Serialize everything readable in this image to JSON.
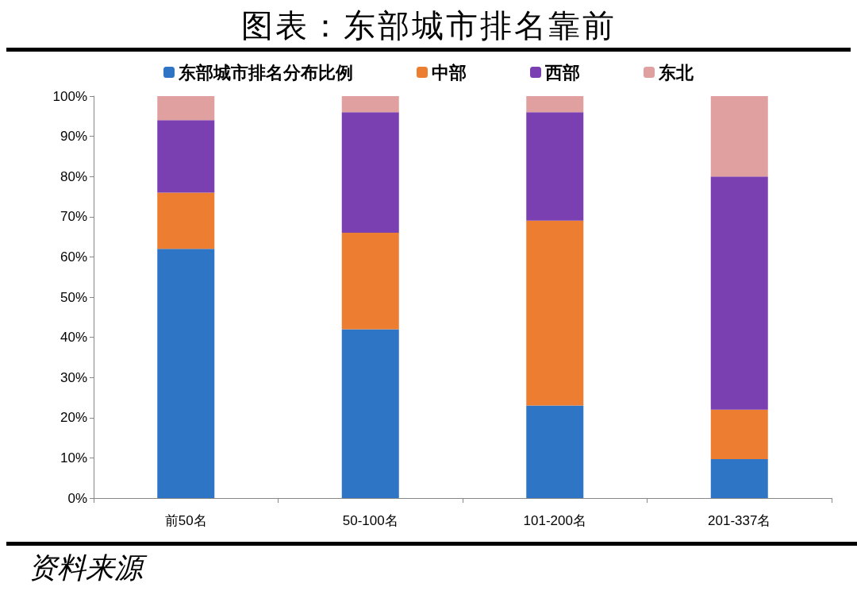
{
  "chart_data": {
    "type": "bar",
    "title": "图表：东部城市排名靠前",
    "categories": [
      "前50名",
      "50-100名",
      "101-200名",
      "201-337名"
    ],
    "series": [
      {
        "name": "东部城市排名分布比例",
        "color": "#2e75c6",
        "values": [
          62,
          42,
          23,
          9.7
        ]
      },
      {
        "name": "中部",
        "color": "#ed7d31",
        "values": [
          14,
          24,
          46,
          12.3
        ]
      },
      {
        "name": "西部",
        "color": "#7a3fb0",
        "values": [
          18,
          30,
          27,
          58
        ]
      },
      {
        "name": "东北",
        "color": "#e0a0a0",
        "values": [
          6,
          4,
          4,
          20
        ]
      }
    ],
    "stacked": true,
    "ylim": [
      0,
      100
    ],
    "yticks": [
      {
        "value": 0,
        "label": "0%"
      },
      {
        "value": 10,
        "label": "10%"
      },
      {
        "value": 20,
        "label": "20%"
      },
      {
        "value": 30,
        "label": "30%"
      },
      {
        "value": 40,
        "label": "40%"
      },
      {
        "value": 50,
        "label": "50%"
      },
      {
        "value": 60,
        "label": "60%"
      },
      {
        "value": 70,
        "label": "70%"
      },
      {
        "value": 80,
        "label": "80%"
      },
      {
        "value": 90,
        "label": "90%"
      },
      {
        "value": 100,
        "label": "100%"
      }
    ],
    "grid": false,
    "legend": "top",
    "annotations": [
      "资料来源"
    ]
  }
}
